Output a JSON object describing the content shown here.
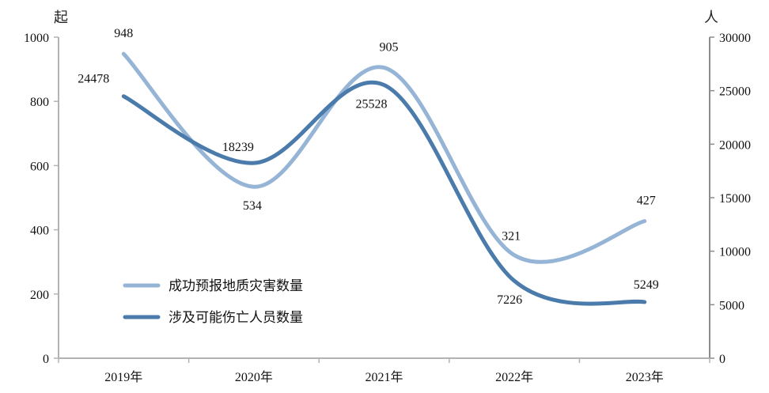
{
  "chart_data": {
    "type": "line",
    "title": "",
    "categories": [
      "2019年",
      "2020年",
      "2021年",
      "2022年",
      "2023年"
    ],
    "series": [
      {
        "name": "成功预报地质灾害数量",
        "axis": "left",
        "color": "#96b5d6",
        "values": [
          948,
          534,
          905,
          321,
          427
        ]
      },
      {
        "name": "涉及可能伤亡人员数量",
        "axis": "right",
        "color": "#4a7bab",
        "values": [
          24478,
          18239,
          25528,
          7226,
          5249
        ]
      }
    ],
    "left_axis": {
      "unit": "起",
      "ylim": [
        0,
        1000
      ],
      "ticks": [
        0,
        200,
        400,
        600,
        800,
        1000
      ]
    },
    "right_axis": {
      "unit": "人",
      "ylim": [
        0,
        30000
      ],
      "ticks": [
        0,
        5000,
        10000,
        15000,
        20000,
        25000,
        30000
      ]
    },
    "xlabel": "",
    "grid": false,
    "legend_position": "lower-left inside"
  }
}
